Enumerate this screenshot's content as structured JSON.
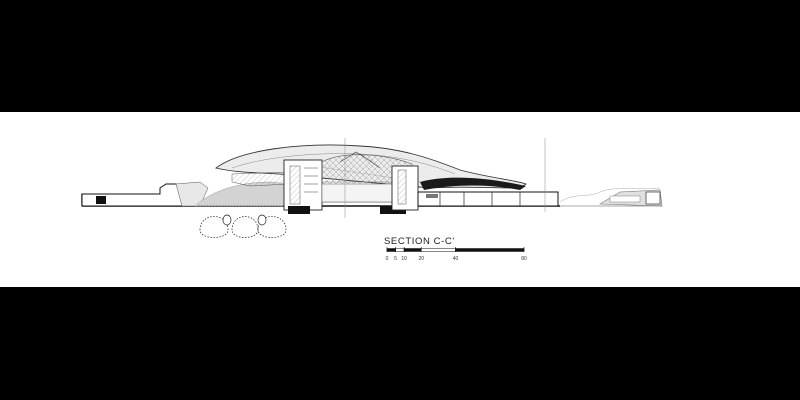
{
  "drawing": {
    "title": "SECTION C-C'",
    "scale_bar": {
      "labels": [
        "0",
        "5",
        "10",
        "20",
        "40",
        "80"
      ],
      "values": [
        0,
        5,
        10,
        20,
        40,
        80
      ]
    }
  },
  "colors": {
    "background": "#000000",
    "sheet": "#ffffff",
    "line": "#2a2a2a",
    "poche": "#111111",
    "hatch_fill": "#d9d9d9",
    "light_fill": "#ececec"
  }
}
